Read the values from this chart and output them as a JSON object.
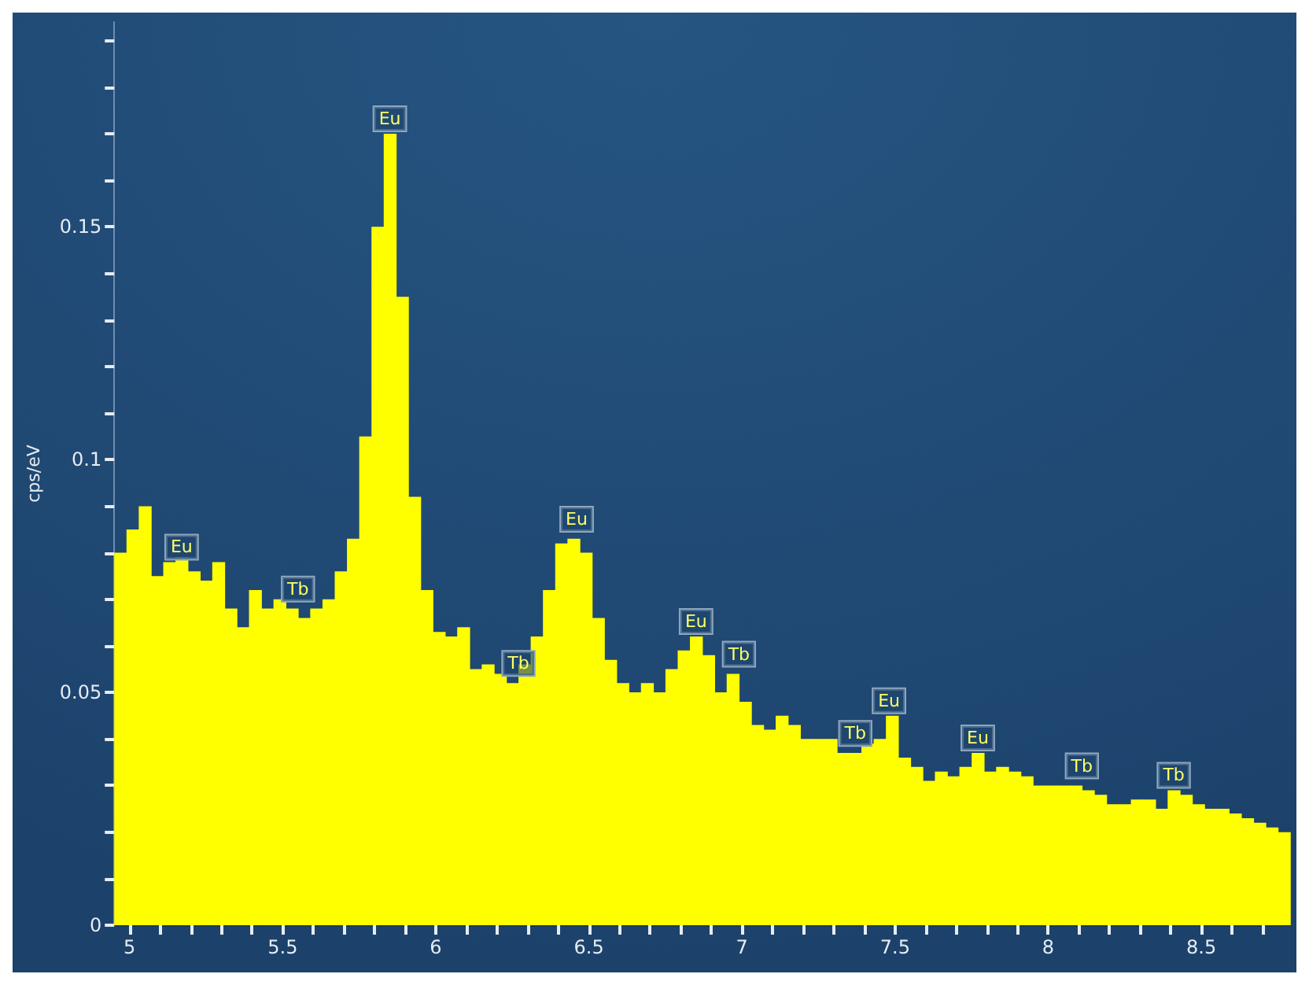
{
  "chart_data": {
    "type": "histogram",
    "ylabel": "cps/eV",
    "color": "#ffff00",
    "bins": [
      4.95,
      4.99,
      5.03,
      5.07,
      5.11,
      5.15,
      5.19,
      5.23,
      5.27,
      5.31,
      5.35,
      5.39,
      5.43,
      5.47,
      5.51,
      5.55,
      5.59,
      5.63,
      5.67,
      5.71,
      5.75,
      5.79,
      5.83,
      5.87,
      5.91,
      5.95,
      5.99,
      6.03,
      6.07,
      6.11,
      6.15,
      6.19,
      6.23,
      6.27,
      6.31,
      6.35,
      6.39,
      6.43,
      6.47,
      6.51,
      6.55,
      6.59,
      6.63,
      6.67,
      6.71,
      6.75,
      6.79,
      6.83,
      6.87,
      6.91,
      6.95,
      6.99,
      7.03,
      7.07,
      7.11,
      7.15,
      7.19,
      7.23,
      7.27,
      7.31,
      7.35,
      7.39,
      7.43,
      7.47,
      7.51,
      7.55,
      7.59,
      7.63,
      7.67,
      7.71,
      7.75,
      7.79,
      7.83,
      7.87,
      7.91,
      7.95,
      7.99,
      8.03,
      8.07,
      8.11,
      8.15,
      8.19,
      8.23,
      8.27,
      8.31,
      8.35,
      8.39,
      8.43,
      8.47,
      8.51,
      8.55,
      8.59,
      8.63,
      8.67,
      8.71,
      8.75,
      8.79
    ],
    "values": [
      0.08,
      0.085,
      0.09,
      0.075,
      0.078,
      0.079,
      0.076,
      0.074,
      0.078,
      0.068,
      0.064,
      0.072,
      0.068,
      0.07,
      0.068,
      0.066,
      0.068,
      0.07,
      0.076,
      0.083,
      0.105,
      0.15,
      0.17,
      0.135,
      0.092,
      0.072,
      0.063,
      0.062,
      0.064,
      0.055,
      0.056,
      0.054,
      0.052,
      0.056,
      0.062,
      0.072,
      0.082,
      0.083,
      0.08,
      0.066,
      0.057,
      0.052,
      0.05,
      0.052,
      0.05,
      0.055,
      0.059,
      0.062,
      0.058,
      0.05,
      0.054,
      0.048,
      0.043,
      0.042,
      0.045,
      0.043,
      0.04,
      0.04,
      0.04,
      0.037,
      0.037,
      0.039,
      0.04,
      0.045,
      0.036,
      0.034,
      0.031,
      0.033,
      0.032,
      0.034,
      0.037,
      0.033,
      0.034,
      0.033,
      0.032,
      0.03,
      0.03,
      0.03,
      0.03,
      0.029,
      0.028,
      0.026,
      0.026,
      0.027,
      0.027,
      0.025,
      0.029,
      0.028,
      0.026,
      0.025,
      0.025,
      0.024,
      0.023,
      0.022,
      0.021,
      0.02
    ],
    "xlim": [
      4.95,
      8.79
    ],
    "ylim": [
      0,
      0.194
    ],
    "xticks": [
      5,
      {
        "value": 5.1,
        "label": null
      },
      {
        "value": 5.2,
        "label": null
      },
      {
        "value": 5.3,
        "label": null
      },
      {
        "value": 5.4,
        "label": null
      },
      5.5,
      {
        "value": 5.6,
        "label": null
      },
      {
        "value": 5.7,
        "label": null
      },
      {
        "value": 5.8,
        "label": null
      },
      {
        "value": 5.9,
        "label": null
      },
      6,
      {
        "value": 6.1,
        "label": null
      },
      {
        "value": 6.2,
        "label": null
      },
      {
        "value": 6.3,
        "label": null
      },
      {
        "value": 6.4,
        "label": null
      },
      6.5,
      {
        "value": 6.6,
        "label": null
      },
      {
        "value": 6.7,
        "label": null
      },
      {
        "value": 6.8,
        "label": null
      },
      {
        "value": 6.9,
        "label": null
      },
      7,
      {
        "value": 7.1,
        "label": null
      },
      {
        "value": 7.2,
        "label": null
      },
      {
        "value": 7.3,
        "label": null
      },
      {
        "value": 7.4,
        "label": null
      },
      7.5,
      {
        "value": 7.6,
        "label": null
      },
      {
        "value": 7.7,
        "label": null
      },
      {
        "value": 7.8,
        "label": null
      },
      {
        "value": 7.9,
        "label": null
      },
      8,
      {
        "value": 8.1,
        "label": null
      },
      {
        "value": 8.2,
        "label": null
      },
      {
        "value": 8.3,
        "label": null
      },
      {
        "value": 8.4,
        "label": null
      },
      8.5,
      {
        "value": 8.6,
        "label": null
      },
      {
        "value": 8.7,
        "label": null
      }
    ],
    "yticks": [
      0,
      {
        "value": 0.01,
        "label": null
      },
      {
        "value": 0.02,
        "label": null
      },
      {
        "value": 0.03,
        "label": null
      },
      {
        "value": 0.04,
        "label": null
      },
      0.05,
      {
        "value": 0.06,
        "label": null
      },
      {
        "value": 0.07,
        "label": null
      },
      {
        "value": 0.08,
        "label": null
      },
      {
        "value": 0.09,
        "label": null
      },
      0.1,
      {
        "value": 0.11,
        "label": null
      },
      {
        "value": 0.12,
        "label": null
      },
      {
        "value": 0.13,
        "label": null
      },
      {
        "value": 0.14,
        "label": null
      },
      0.15,
      {
        "value": 0.16,
        "label": null
      },
      {
        "value": 0.17,
        "label": null
      },
      {
        "value": 0.18,
        "label": null
      },
      {
        "value": 0.19,
        "label": null
      }
    ],
    "grid": false,
    "annotations": [
      {
        "text": "Eu",
        "x": 5.17,
        "y": 0.078
      },
      {
        "text": "Tb",
        "x": 5.55,
        "y": 0.069
      },
      {
        "text": "Eu",
        "x": 5.85,
        "y": 0.17
      },
      {
        "text": "Tb",
        "x": 6.27,
        "y": 0.053
      },
      {
        "text": "Eu",
        "x": 6.46,
        "y": 0.084
      },
      {
        "text": "Eu",
        "x": 6.85,
        "y": 0.062
      },
      {
        "text": "Tb",
        "x": 6.99,
        "y": 0.055
      },
      {
        "text": "Tb",
        "x": 7.37,
        "y": 0.038
      },
      {
        "text": "Eu",
        "x": 7.48,
        "y": 0.045
      },
      {
        "text": "Eu",
        "x": 7.77,
        "y": 0.037
      },
      {
        "text": "Tb",
        "x": 8.11,
        "y": 0.031
      },
      {
        "text": "Tb",
        "x": 8.41,
        "y": 0.029
      }
    ]
  }
}
